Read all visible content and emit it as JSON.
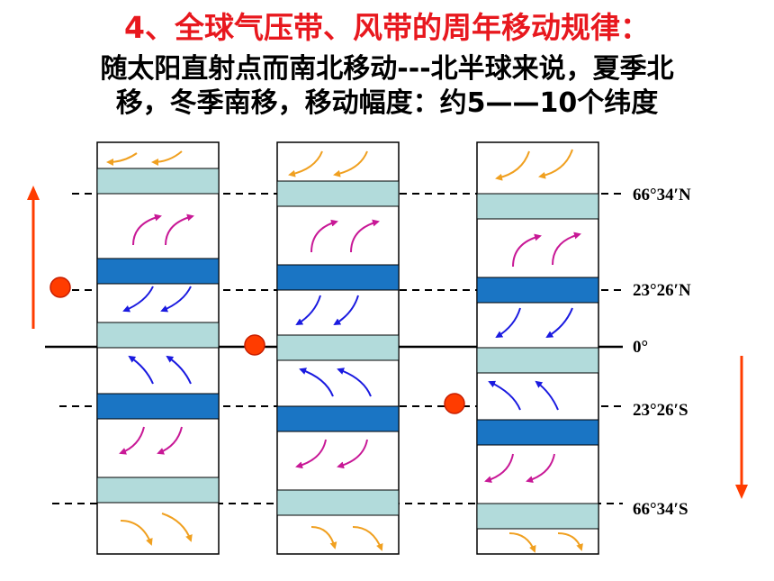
{
  "title": "4、全球气压带、风带的周年移动规律：",
  "subtitle": {
    "line1": "随太阳直射点而南北移动---北半球来说，夏季北",
    "line2": "移，冬季南移，移动幅度：约5——10个纬度"
  },
  "latitudes": [
    {
      "id": "66N",
      "label": "66°34′N"
    },
    {
      "id": "23N",
      "label": "23°26′N"
    },
    {
      "id": "eq",
      "label": "0°"
    },
    {
      "id": "23S",
      "label": "23°26′S"
    },
    {
      "id": "66S",
      "label": "66°34′S"
    }
  ],
  "columns": [
    {
      "id": "northward",
      "shift_degrees": 5
    },
    {
      "id": "normal",
      "shift_degrees": 0
    },
    {
      "id": "southward",
      "shift_degrees": -5
    }
  ],
  "colors": {
    "title": "#e8181e",
    "high_pressure_belt": "#b2dbdb",
    "low_pressure_belt": "#1a75c4",
    "polar_easterly_arrow": "#f0a020",
    "westerly_arrow": "#c81896",
    "trade_wind_arrow": "#1a1ae0",
    "sun_point": "#ff3c00",
    "migration_arrow": "#ff3c00"
  }
}
